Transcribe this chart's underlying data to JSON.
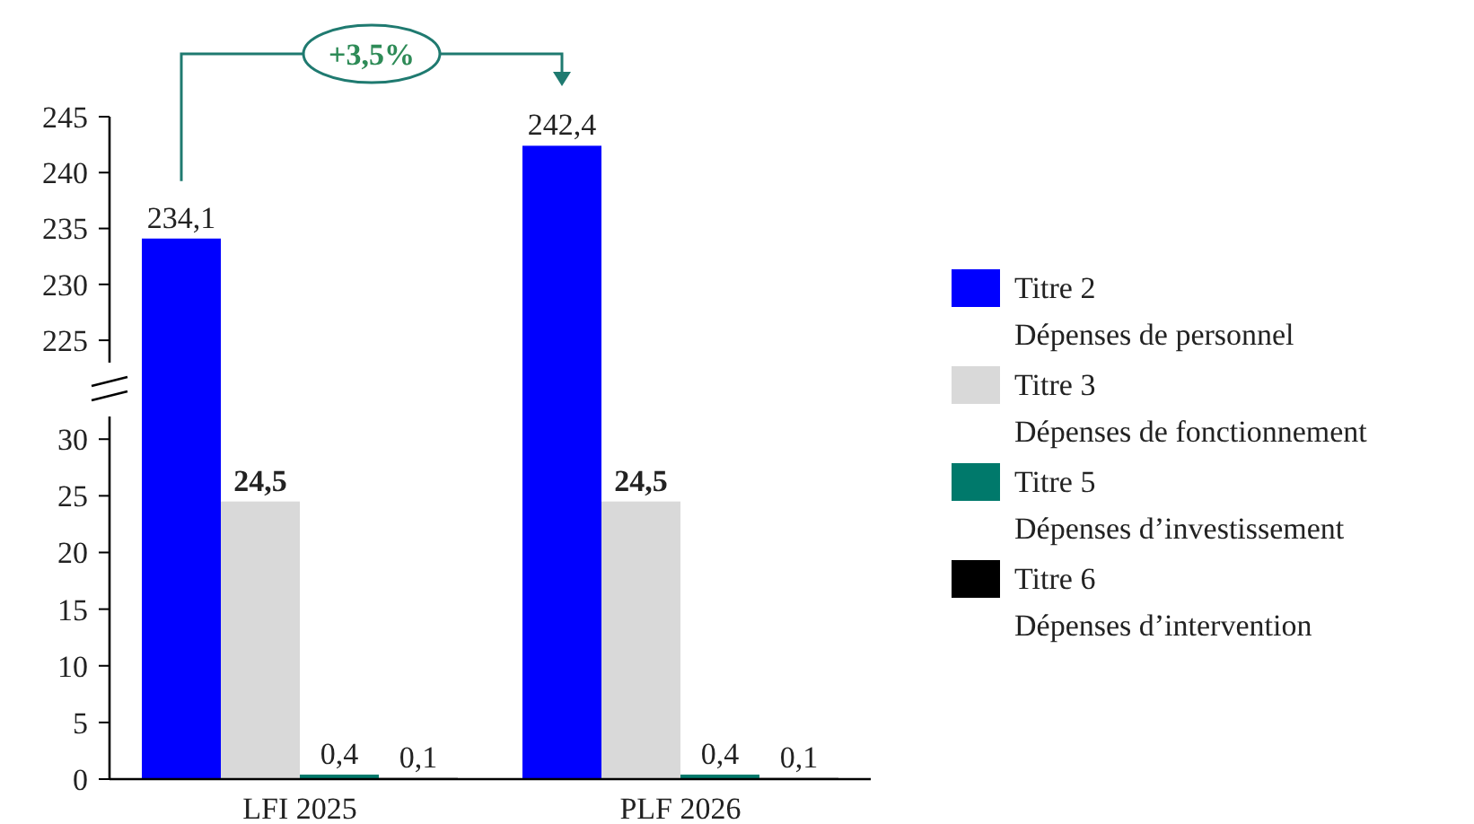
{
  "chart_data": [
    {
      "type": "bar",
      "series": [
        {
          "name": "Titre 2\nDépenses de personnel",
          "color": "#0000ff",
          "values": [
            234.1,
            242.4
          ],
          "value_labels": [
            "234,1",
            "242,4"
          ]
        }
      ],
      "ylim": [
        223,
        245
      ],
      "yticks": [
        225,
        230,
        235,
        240,
        245
      ],
      "tick_labels": "y",
      "annotations": [
        "+3,5%"
      ],
      "grid": false
    },
    {
      "type": "bar",
      "categories": [
        "LFI 2025",
        "PLF 2026"
      ],
      "series": [
        {
          "name": "Titre 3\nDépenses de fonctionnement",
          "color": "#d9d9d9",
          "values": [
            24.5,
            24.5
          ],
          "value_labels": [
            "24,5",
            "24,5"
          ]
        },
        {
          "name": "Titre 5\nDépenses d’investissement",
          "color": "#00796b",
          "values": [
            0.4,
            0.4
          ],
          "value_labels": [
            "0,4",
            "0,4"
          ]
        },
        {
          "name": "Titre 6\nDépenses d’intervention",
          "color": "#000000",
          "values": [
            0.1,
            0.1
          ],
          "value_labels": [
            "0,1",
            "0,1"
          ]
        }
      ],
      "ylim": [
        0,
        32
      ],
      "yticks": [
        0,
        5,
        10,
        15,
        20,
        25,
        30
      ],
      "legend": "right",
      "grid": false
    }
  ]
}
